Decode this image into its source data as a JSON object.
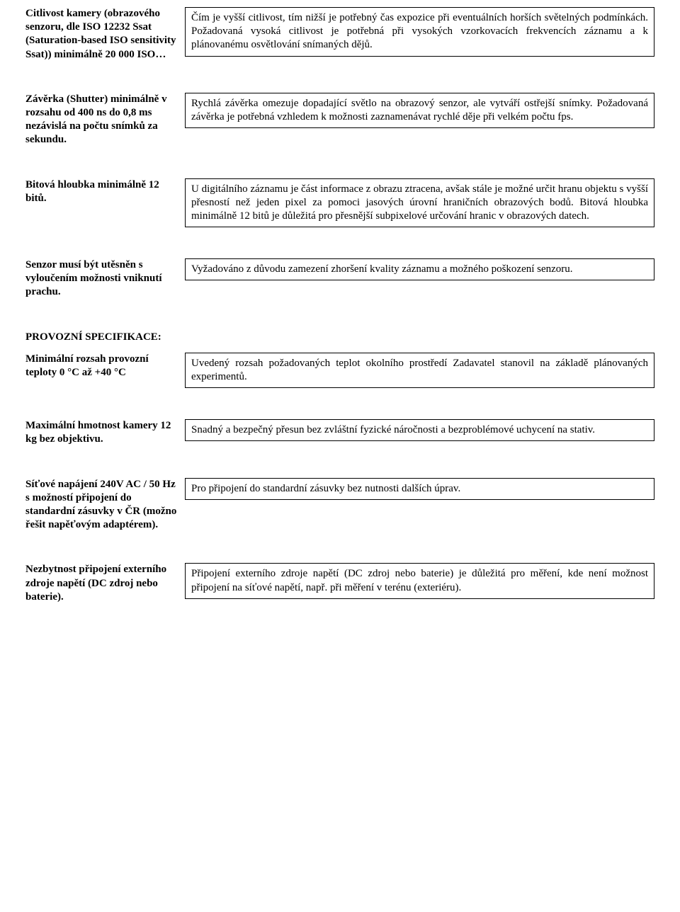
{
  "rows": [
    {
      "left": "Citlivost kamery (obrazového senzoru, dle ISO 12232 Ssat (Saturation-based ISO sensitivity Ssat)) minimálně 20 000 ISO…",
      "right": "Čím je vyšší citlivost, tím nižší je potřebný čas expozice při eventuálních horších světelných podmínkách. Požadovaná vysoká citlivost je potřebná při vysokých vzorkovacích frekvencích záznamu a k plánovanému osvětlování snímaných dějů."
    },
    {
      "left": "Závěrka (Shutter) minimálně v rozsahu od 400 ns do 0,8 ms   nezávislá na počtu snímků za sekundu.",
      "right": "Rychlá závěrka omezuje dopadající světlo na obrazový senzor, ale vytváří ostřejší snímky. Požadovaná závěrka je potřebná vzhledem k možnosti zaznamenávat rychlé děje při velkém počtu fps."
    },
    {
      "left": "Bitová hloubka minimálně 12 bitů.",
      "right": "U digitálního záznamu je část informace z obrazu ztracena, avšak stále je možné určit hranu objektu s vyšší přesností než jeden pixel za pomoci jasových úrovní hraničních obrazových bodů. Bitová hloubka minimálně 12 bitů je důležitá pro přesnější subpixelové určování hranic v obrazových datech."
    },
    {
      "left": "Senzor musí být utěsněn s vyloučením možnosti vniknutí prachu.",
      "right": "Vyžadováno z důvodu zamezení zhoršení kvality záznamu a možného poškození senzoru."
    }
  ],
  "sectionHeading": "PROVOZNÍ SPECIFIKACE:",
  "rows2": [
    {
      "left": "Minimální rozsah provozní teploty 0 °C až +40 °C",
      "right": "Uvedený rozsah požadovaných teplot okolního prostředí Zadavatel stanovil na základě plánovaných experimentů."
    },
    {
      "left": "Maximální hmotnost kamery 12 kg bez objektivu.",
      "right": "Snadný a bezpečný přesun bez zvláštní fyzické náročnosti a bezproblémové uchycení na stativ."
    },
    {
      "left": "Síťové napájení 240V AC / 50 Hz s možností připojení do standardní zásuvky v ČR (možno řešit napěťovým adaptérem).",
      "right": "Pro připojení do standardní zásuvky bez nutnosti dalších úprav."
    },
    {
      "left": "Nezbytnost připojení externího zdroje napětí (DC zdroj nebo baterie).",
      "right": "Připojení externího zdroje napětí (DC zdroj nebo baterie) je důležitá pro měření, kde není možnost připojení na síťové napětí, např. při měření v terénu (exteriéru)."
    }
  ]
}
